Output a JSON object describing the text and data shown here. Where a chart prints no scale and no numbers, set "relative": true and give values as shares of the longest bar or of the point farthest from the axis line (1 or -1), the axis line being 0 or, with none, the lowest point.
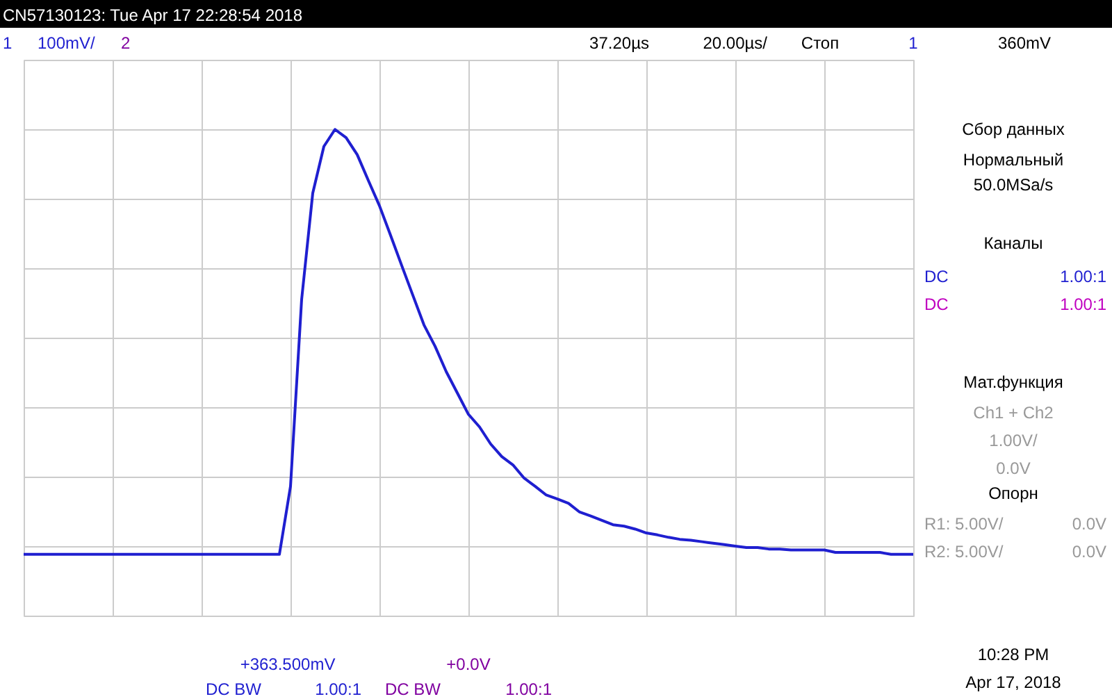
{
  "chart_data": {
    "type": "line",
    "relative": true,
    "grid": true,
    "marker": "none",
    "line_style": "solid",
    "categories": [
      null,
      null,
      null,
      null,
      null,
      null,
      null,
      null,
      null,
      null,
      null,
      null,
      null,
      null,
      null,
      null,
      null,
      null,
      null,
      null,
      null,
      null,
      null,
      null,
      null,
      null,
      null,
      null,
      null,
      null,
      null,
      null,
      null,
      null,
      null,
      null,
      null,
      null,
      null,
      null,
      null,
      null,
      null,
      null,
      null,
      null,
      null,
      null,
      null,
      null,
      null,
      null,
      null,
      null,
      null,
      null,
      null,
      null,
      null,
      null,
      null,
      null,
      null,
      null,
      null,
      null,
      null,
      null,
      null,
      null,
      null,
      null,
      null,
      null,
      null,
      null,
      null,
      null,
      null,
      null,
      null
    ],
    "series": [
      {
        "color": "#1f1fd0",
        "values": [
          0.126,
          0.126,
          0.126,
          0.126,
          0.126,
          0.126,
          0.126,
          0.126,
          0.126,
          0.126,
          0.126,
          0.126,
          0.126,
          0.126,
          0.126,
          0.126,
          0.126,
          0.126,
          0.126,
          0.126,
          0.126,
          0.126,
          0.126,
          0.126,
          0.266,
          0.65,
          0.869,
          0.965,
          1,
          0.983,
          0.948,
          0.895,
          0.843,
          0.782,
          0.72,
          0.659,
          0.598,
          0.554,
          0.502,
          0.458,
          0.414,
          0.388,
          0.353,
          0.327,
          0.31,
          0.283,
          0.266,
          0.248,
          0.24,
          0.231,
          0.213,
          0.205,
          0.196,
          0.187,
          0.184,
          0.178,
          0.17,
          0.166,
          0.161,
          0.157,
          0.155,
          0.152,
          0.149,
          0.146,
          0.143,
          0.14,
          0.14,
          0.137,
          0.137,
          0.135,
          0.135,
          0.135,
          0.135,
          0.13,
          0.13,
          0.13,
          0.13,
          0.13,
          0.126,
          0.126,
          0.126
        ]
      }
    ],
    "annotations": [
      "CN57130123: Tue Apr 17 22:28:54 2018",
      "1",
      "100mV/",
      "2",
      "37.20µs",
      "20.00µs/",
      "Стоп",
      "1",
      "360mV",
      "Сбор данных",
      "Нормальный",
      "50.0MSa/s",
      "Каналы",
      "DC",
      "1.00:1",
      "DC",
      "1.00:1",
      "Мат.функция",
      "Ch1 + Ch2",
      "1.00V/",
      "0.0V",
      "Опорн",
      "R1:  5.00V/",
      "0.0V",
      "R2:  5.00V/",
      "0.0V",
      "+363.500mV",
      "DC  BW",
      "1.00:1",
      "+0.0V",
      "DC  BW",
      "1.00:1",
      "10:28 PM",
      "Apr 17, 2018"
    ]
  }
}
